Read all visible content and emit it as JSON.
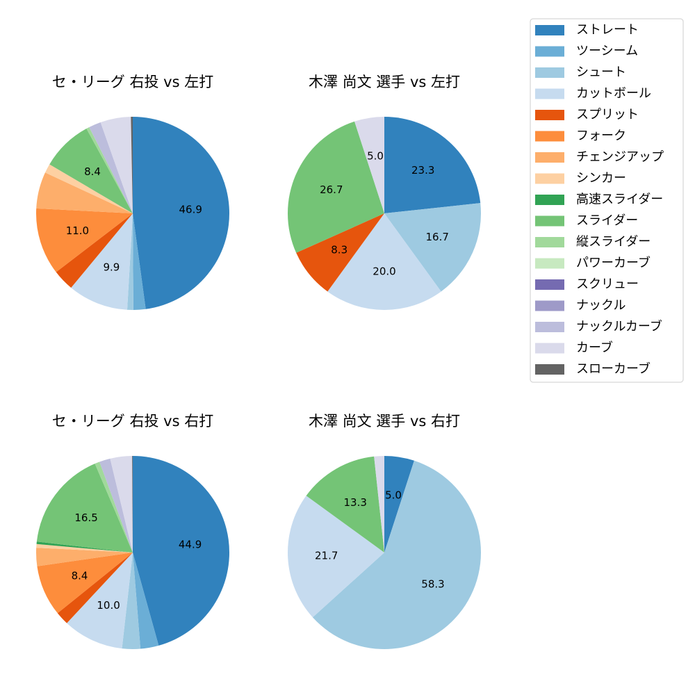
{
  "legend": {
    "items": [
      {
        "name": "ストレート",
        "color": "#3182bd"
      },
      {
        "name": "ツーシーム",
        "color": "#6baed6"
      },
      {
        "name": "シュート",
        "color": "#9ecae1"
      },
      {
        "name": "カットボール",
        "color": "#c6dbef"
      },
      {
        "name": "スプリット",
        "color": "#e6550d"
      },
      {
        "name": "フォーク",
        "color": "#fd8d3c"
      },
      {
        "name": "チェンジアップ",
        "color": "#fdae6b"
      },
      {
        "name": "シンカー",
        "color": "#fdd0a2"
      },
      {
        "name": "高速スライダー",
        "color": "#31a354"
      },
      {
        "name": "スライダー",
        "color": "#74c476"
      },
      {
        "name": "縦スライダー",
        "color": "#a1d99b"
      },
      {
        "name": "パワーカーブ",
        "color": "#c7e9c0"
      },
      {
        "name": "スクリュー",
        "color": "#756bb1"
      },
      {
        "name": "ナックル",
        "color": "#9e9ac8"
      },
      {
        "name": "ナックルカーブ",
        "color": "#bcbddc"
      },
      {
        "name": "カーブ",
        "color": "#dadaeb"
      },
      {
        "name": "スローカーブ",
        "color": "#636363"
      }
    ]
  },
  "chart_data": [
    {
      "type": "pie",
      "title": "セ・リーグ 右投 vs 左打",
      "slices": [
        {
          "name": "ストレート",
          "value": 46.9,
          "label": "46.9"
        },
        {
          "name": "ツーシーム",
          "value": 2.0
        },
        {
          "name": "シュート",
          "value": 1.0
        },
        {
          "name": "カットボール",
          "value": 9.9,
          "label": "9.9"
        },
        {
          "name": "スプリット",
          "value": 3.5
        },
        {
          "name": "フォーク",
          "value": 11.0,
          "label": "11.0"
        },
        {
          "name": "チェンジアップ",
          "value": 6.0
        },
        {
          "name": "シンカー",
          "value": 1.5
        },
        {
          "name": "スライダー",
          "value": 8.4,
          "label": "8.4"
        },
        {
          "name": "縦スライダー",
          "value": 0.5
        },
        {
          "name": "ナックルカーブ",
          "value": 2.0
        },
        {
          "name": "カーブ",
          "value": 5.0
        },
        {
          "name": "スローカーブ",
          "value": 0.3
        }
      ]
    },
    {
      "type": "pie",
      "title": "木澤 尚文 選手 vs 左打",
      "slices": [
        {
          "name": "ストレート",
          "value": 23.3,
          "label": "23.3"
        },
        {
          "name": "シュート",
          "value": 16.7,
          "label": "16.7"
        },
        {
          "name": "カットボール",
          "value": 20.0,
          "label": "20.0"
        },
        {
          "name": "スプリット",
          "value": 8.3,
          "label": "8.3"
        },
        {
          "name": "スライダー",
          "value": 26.7,
          "label": "26.7"
        },
        {
          "name": "カーブ",
          "value": 5.0,
          "label": "5.0"
        }
      ]
    },
    {
      "type": "pie",
      "title": "セ・リーグ 右投 vs 右打",
      "slices": [
        {
          "name": "ストレート",
          "value": 44.9,
          "label": "44.9"
        },
        {
          "name": "ツーシーム",
          "value": 3.0
        },
        {
          "name": "シュート",
          "value": 3.0
        },
        {
          "name": "カットボール",
          "value": 10.0,
          "label": "10.0"
        },
        {
          "name": "スプリット",
          "value": 2.2
        },
        {
          "name": "フォーク",
          "value": 8.4,
          "label": "8.4"
        },
        {
          "name": "チェンジアップ",
          "value": 3.0
        },
        {
          "name": "シンカー",
          "value": 0.6
        },
        {
          "name": "高速スライダー",
          "value": 0.4
        },
        {
          "name": "スライダー",
          "value": 16.5,
          "label": "16.5"
        },
        {
          "name": "縦スライダー",
          "value": 0.8
        },
        {
          "name": "ナックルカーブ",
          "value": 1.8
        },
        {
          "name": "カーブ",
          "value": 3.6
        },
        {
          "name": "スローカーブ",
          "value": 0.1
        }
      ]
    },
    {
      "type": "pie",
      "title": "木澤 尚文 選手 vs 右打",
      "slices": [
        {
          "name": "ストレート",
          "value": 5.0,
          "label": "5.0"
        },
        {
          "name": "シュート",
          "value": 58.3,
          "label": "58.3"
        },
        {
          "name": "カットボール",
          "value": 21.7,
          "label": "21.7"
        },
        {
          "name": "スライダー",
          "value": 13.3,
          "label": "13.3"
        },
        {
          "name": "カーブ",
          "value": 1.7
        }
      ]
    }
  ]
}
